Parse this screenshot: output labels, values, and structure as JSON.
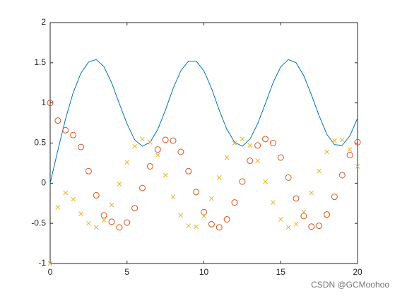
{
  "chart_data": {
    "type": "line",
    "x": [
      0,
      0.5,
      1,
      1.5,
      2,
      2.5,
      3,
      3.5,
      4,
      4.5,
      5,
      5.5,
      6,
      6.5,
      7,
      7.5,
      8,
      8.5,
      9,
      9.5,
      10,
      10.5,
      11,
      11.5,
      12,
      12.5,
      13,
      13.5,
      14,
      14.5,
      15,
      15.5,
      16,
      16.5,
      17,
      17.5,
      18,
      18.5,
      19,
      19.5,
      20
    ],
    "series": [
      {
        "color": "#0072BD",
        "marker": "none",
        "values": [
          0,
          0.41,
          0.8,
          1.13,
          1.37,
          1.51,
          1.54,
          1.45,
          1.25,
          0.99,
          0.74,
          0.54,
          0.46,
          0.51,
          0.67,
          0.91,
          1.18,
          1.4,
          1.52,
          1.52,
          1.4,
          1.18,
          0.91,
          0.67,
          0.51,
          0.46,
          0.55,
          0.74,
          0.99,
          1.25,
          1.45,
          1.54,
          1.5,
          1.34,
          1.1,
          0.84,
          0.61,
          0.48,
          0.47,
          0.59,
          0.81
        ]
      },
      {
        "color": "#D95319",
        "marker": "o",
        "values": [
          1,
          0.78,
          0.66,
          0.6,
          0.45,
          0.15,
          -0.15,
          -0.4,
          -0.48,
          -0.55,
          -0.49,
          -0.31,
          -0.06,
          0.21,
          0.42,
          0.54,
          0.53,
          0.39,
          0.15,
          -0.11,
          -0.36,
          -0.51,
          -0.55,
          -0.45,
          -0.24,
          0.02,
          0.28,
          0.47,
          0.55,
          0.5,
          0.32,
          0.07,
          -0.19,
          -0.41,
          -0.54,
          -0.53,
          -0.39,
          -0.17,
          0.1,
          0.35,
          0.51
        ]
      },
      {
        "color": "#EDB120",
        "marker": "x",
        "values": [
          -1,
          -0.3,
          -0.12,
          -0.2,
          -0.38,
          -0.5,
          -0.55,
          -0.46,
          -0.27,
          -0.01,
          0.26,
          0.46,
          0.55,
          0.51,
          0.35,
          0.1,
          -0.17,
          -0.4,
          -0.53,
          -0.54,
          -0.41,
          -0.19,
          0.07,
          0.32,
          0.5,
          0.55,
          0.47,
          0.28,
          0.02,
          -0.24,
          -0.45,
          -0.55,
          -0.51,
          -0.36,
          -0.12,
          0.15,
          0.39,
          0.53,
          0.54,
          0.42,
          0.21
        ]
      }
    ],
    "xlim": [
      0,
      20
    ],
    "xticks": [
      0,
      5,
      10,
      15,
      20
    ],
    "ylim": [
      -1,
      2
    ],
    "yticks": [
      -1,
      -0.5,
      0,
      0.5,
      1,
      1.5,
      2
    ],
    "grid": false
  },
  "watermark": "CSDN @GCMoohoo"
}
